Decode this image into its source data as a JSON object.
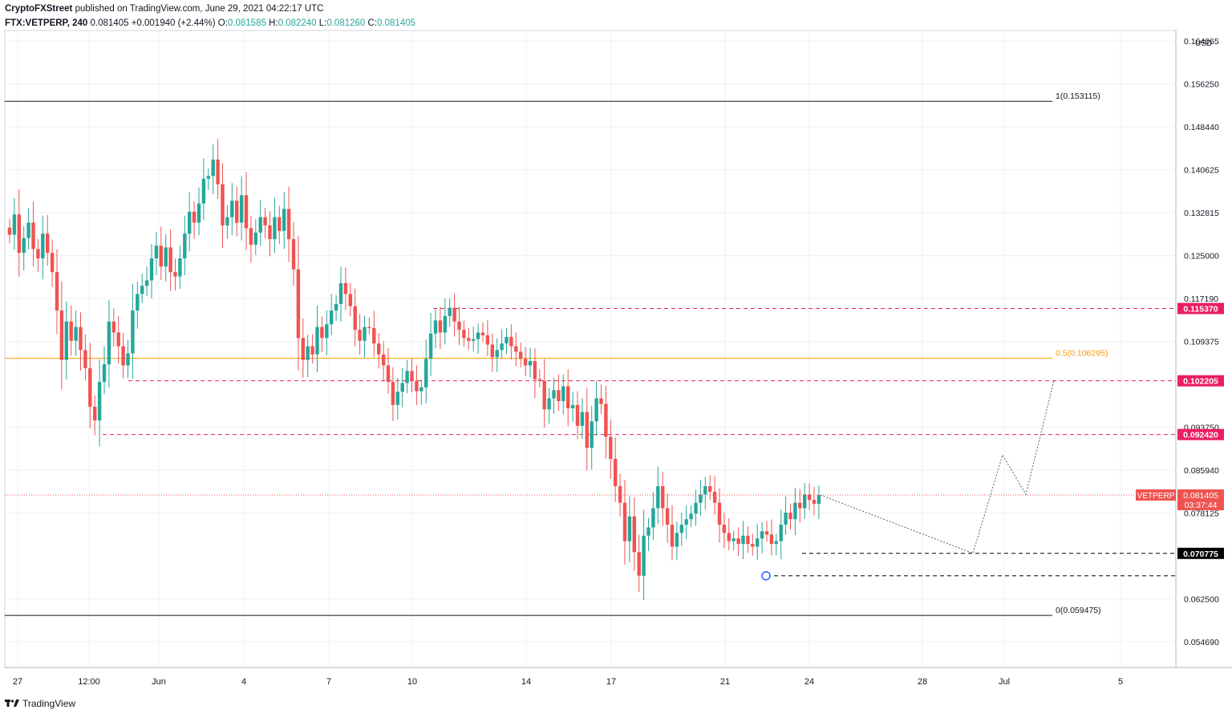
{
  "header": {
    "line1": {
      "author": "CryptoFXStreet",
      "published": "published on TradingView.com, June 29, 2021 04:22:17 UTC"
    },
    "line2": {
      "symbol": "FTX:VETPERP, 240",
      "last": "0.081405",
      "change": "+0.001940 (+2.44%)",
      "o_label": "O:",
      "o": "0.081585",
      "h_label": "H:",
      "h": "0.082240",
      "l_label": "L:",
      "l": "0.081260",
      "c_label": "C:",
      "c": "0.081405"
    }
  },
  "footer": {
    "brand": "TradingView"
  },
  "colors": {
    "up": "#26a69a",
    "down": "#ef5350",
    "fib_level": "#ff9800",
    "resistance": "#e91e63",
    "support": "#000000",
    "price_line": "#ef5350",
    "grid": "#eef0f3"
  },
  "chart_data": {
    "type": "candlestick",
    "symbol": "VETPERP",
    "currency": "USD",
    "ylim": [
      0.05,
      0.166
    ],
    "y_ticks": [
      "0.164065",
      "0.156250",
      "0.148440",
      "0.140625",
      "0.132815",
      "0.125000",
      "0.117190",
      "0.109375",
      "0.093750",
      "0.085940",
      "0.078125",
      "0.062500",
      "0.054690"
    ],
    "x_ticks": [
      "27",
      "12:00",
      "Jun",
      "4",
      "7",
      "10",
      "14",
      "17",
      "21",
      "24",
      "28",
      "Jul",
      "5"
    ],
    "x_tick_dates": [
      "2021-05-27",
      "2021-05-28 12:00",
      "2021-06-01",
      "2021-06-04",
      "2021-06-07",
      "2021-06-10",
      "2021-06-14",
      "2021-06-17",
      "2021-06-21",
      "2021-06-24",
      "2021-06-28",
      "2021-07-01",
      "2021-07-05"
    ],
    "horizontal_levels": [
      {
        "label": "1(0.153115)",
        "value": 0.153115,
        "style": "solid",
        "color": "#131722"
      },
      {
        "label": "0.5(0.106295)",
        "value": 0.106295,
        "style": "solid",
        "color": "#ff9800"
      },
      {
        "label": "0(0.059475)",
        "value": 0.059475,
        "style": "solid",
        "color": "#131722"
      },
      {
        "label": "",
        "value": 0.11537,
        "style": "dashed",
        "color": "#e91e63",
        "tag": "0.115370"
      },
      {
        "label": "",
        "value": 0.102205,
        "style": "dashed",
        "color": "#e91e63",
        "tag": "0.102205"
      },
      {
        "label": "",
        "value": 0.09242,
        "style": "dashed",
        "color": "#e91e63",
        "tag": "0.092420"
      },
      {
        "label": "",
        "value": 0.070775,
        "style": "dashed",
        "color": "#000000",
        "tag": "0.070775"
      },
      {
        "label": "",
        "value": 0.0667,
        "style": "dashed",
        "color": "#000000",
        "tag": ""
      }
    ],
    "current_price": {
      "symbol": "VETPERP",
      "value": "0.081405",
      "countdown": "03:37:44"
    },
    "projection_path": [
      [
        0.0814,
        0
      ],
      [
        0.0708,
        1
      ],
      [
        0.0817,
        2
      ],
      [
        0.0887,
        3
      ],
      [
        0.0815,
        4
      ],
      [
        0.1022,
        5
      ]
    ],
    "closes": [
      0.1288,
      0.1325,
      0.1255,
      0.1282,
      0.131,
      0.1262,
      0.1245,
      0.129,
      0.1255,
      0.122,
      0.115,
      0.106,
      0.113,
      0.1095,
      0.112,
      0.1078,
      0.1045,
      0.0975,
      0.095,
      0.102,
      0.1052,
      0.113,
      0.111,
      0.1085,
      0.105,
      0.1072,
      0.115,
      0.118,
      0.1195,
      0.1205,
      0.1245,
      0.1268,
      0.123,
      0.1265,
      0.122,
      0.1212,
      0.1245,
      0.129,
      0.133,
      0.131,
      0.1345,
      0.139,
      0.1395,
      0.1425,
      0.138,
      0.1305,
      0.132,
      0.135,
      0.131,
      0.136,
      0.13,
      0.127,
      0.1292,
      0.132,
      0.1305,
      0.128,
      0.132,
      0.1295,
      0.1335,
      0.128,
      0.1225,
      0.11,
      0.106,
      0.1085,
      0.107,
      0.112,
      0.11,
      0.1125,
      0.115,
      0.1162,
      0.12,
      0.118,
      0.1158,
      0.1115,
      0.1095,
      0.112,
      0.1118,
      0.109,
      0.107,
      0.105,
      0.102,
      0.0978,
      0.1002,
      0.1018,
      0.104,
      0.1022,
      0.1003,
      0.101,
      0.1062,
      0.1108,
      0.1132,
      0.111,
      0.114,
      0.1155,
      0.113,
      0.1115,
      0.11,
      0.1095,
      0.1098,
      0.111,
      0.1105,
      0.1088,
      0.1065,
      0.1078,
      0.109,
      0.1102,
      0.1085,
      0.1075,
      0.1062,
      0.105,
      0.1058,
      0.1025,
      0.1022,
      0.097,
      0.099,
      0.1005,
      0.0985,
      0.1012,
      0.0972,
      0.0978,
      0.094,
      0.0965,
      0.09,
      0.0948,
      0.099,
      0.098,
      0.092,
      0.088,
      0.083,
      0.08,
      0.073,
      0.0775,
      0.071,
      0.0667,
      0.074,
      0.0755,
      0.079,
      0.083,
      0.079,
      0.076,
      0.072,
      0.0745,
      0.076,
      0.077,
      0.078,
      0.08,
      0.0815,
      0.083,
      0.082,
      0.08,
      0.076,
      0.0745,
      0.073,
      0.0735,
      0.0725,
      0.074,
      0.0725,
      0.072,
      0.0735,
      0.0748,
      0.0742,
      0.0725,
      0.073,
      0.076,
      0.0782,
      0.077,
      0.08,
      0.079,
      0.0815,
      0.0805,
      0.0798,
      0.0814
    ]
  }
}
